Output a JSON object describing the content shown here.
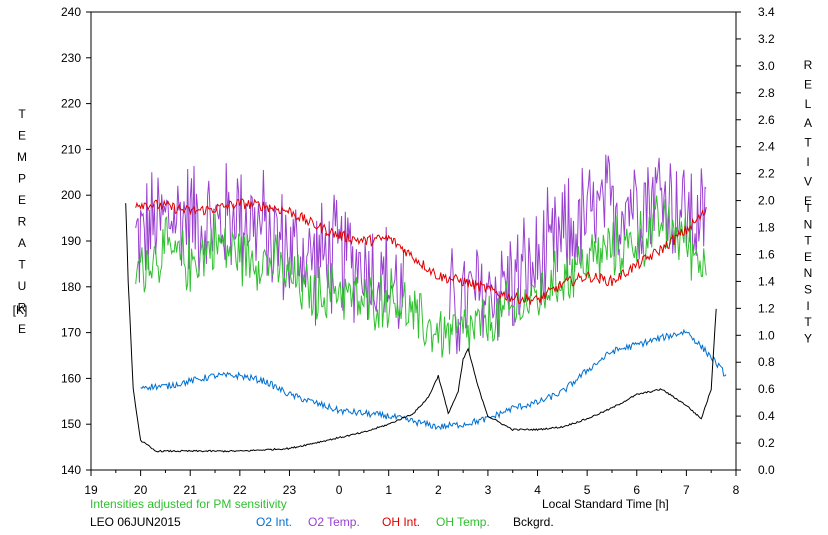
{
  "chart_data": {
    "type": "line",
    "station": "LEO 06JUN2015",
    "note": "Intensities adjusted for PM sensitivity",
    "xlabel": "Local Standard Time [h]",
    "xlim": [
      19,
      32
    ],
    "x_ticks": [
      19,
      20,
      21,
      22,
      23,
      24,
      25,
      26,
      27,
      28,
      29,
      30,
      31,
      32
    ],
    "x_tick_labels": [
      "19",
      "20",
      "21",
      "22",
      "23",
      "0",
      "1",
      "2",
      "3",
      "4",
      "5",
      "6",
      "7",
      "8"
    ],
    "y_left": {
      "label_letters": [
        "T",
        "E",
        "M",
        "P",
        "E",
        "R",
        "A",
        "T",
        "U",
        "R",
        "E"
      ],
      "unit": "[K]",
      "lim": [
        140,
        240
      ],
      "ticks": [
        140,
        150,
        160,
        170,
        180,
        190,
        200,
        210,
        220,
        230,
        240
      ]
    },
    "y_right": {
      "label_letters": [
        "R",
        "E",
        "L",
        "A",
        "T",
        "I",
        "V",
        "E"
      ],
      "label_letters2": [
        "I",
        "N",
        "T",
        "E",
        "N",
        "S",
        "I",
        "T",
        "Y"
      ],
      "lim": [
        0.0,
        3.4
      ],
      "ticks": [
        "0.0",
        "0.2",
        "0.4",
        "0.6",
        "0.8",
        "1.0",
        "1.2",
        "1.4",
        "1.6",
        "1.8",
        "2.0",
        "2.2",
        "2.4",
        "2.6",
        "2.8",
        "3.0",
        "3.2",
        "3.4"
      ]
    },
    "grid": false,
    "series": [
      {
        "name": "O2 Int.",
        "color": "#0070d0",
        "axis": "right",
        "noise": 0.025,
        "x": [
          20.0,
          20.5,
          21.0,
          21.5,
          22.0,
          22.5,
          23.0,
          23.5,
          24.0,
          24.5,
          25.0,
          25.5,
          26.0,
          26.5,
          27.0,
          27.5,
          28.0,
          28.5,
          29.0,
          29.5,
          30.0,
          30.5,
          31.0,
          31.5,
          31.8
        ],
        "y": [
          0.62,
          0.62,
          0.66,
          0.7,
          0.7,
          0.66,
          0.56,
          0.5,
          0.44,
          0.42,
          0.4,
          0.36,
          0.32,
          0.34,
          0.38,
          0.46,
          0.5,
          0.58,
          0.74,
          0.88,
          0.93,
          0.98,
          1.03,
          0.84,
          0.7
        ]
      },
      {
        "name": "O2 Temp.",
        "color": "#9a40d0",
        "axis": "left",
        "noise": 10,
        "x": [
          19.9,
          20.5,
          21.0,
          21.5,
          22.0,
          22.5,
          23.0,
          23.5,
          24.0,
          24.5,
          25.0,
          25.3,
          26.2,
          27.2,
          28.0,
          28.5,
          29.0,
          29.5,
          30.0,
          30.5,
          31.0,
          31.4
        ],
        "y": [
          190,
          195,
          196,
          193,
          197,
          192,
          188,
          186,
          187,
          185,
          181,
          178,
          175,
          180,
          184,
          190,
          195,
          197,
          200,
          201,
          196,
          193
        ]
      },
      {
        "name": "OH Int.",
        "color": "#e00000",
        "axis": "right",
        "noise": 0.04,
        "x": [
          19.9,
          20.5,
          21.0,
          21.5,
          22.0,
          22.5,
          23.0,
          23.5,
          24.0,
          24.5,
          25.0,
          25.3,
          25.5,
          26.0,
          26.5,
          27.0,
          27.5,
          28.0,
          28.5,
          29.0,
          29.5,
          30.0,
          30.5,
          31.0,
          31.4
        ],
        "y": [
          1.98,
          1.96,
          1.92,
          1.94,
          1.98,
          1.96,
          1.92,
          1.82,
          1.74,
          1.7,
          1.72,
          1.64,
          1.58,
          1.44,
          1.4,
          1.34,
          1.28,
          1.26,
          1.38,
          1.44,
          1.4,
          1.52,
          1.64,
          1.78,
          1.92
        ]
      },
      {
        "name": "OH Temp.",
        "color": "#30c030",
        "axis": "left",
        "noise": 5,
        "x": [
          19.9,
          20.5,
          21.0,
          21.5,
          22.0,
          22.5,
          23.0,
          23.5,
          24.0,
          24.5,
          25.0,
          25.3,
          25.5,
          26.0,
          26.5,
          27.0,
          27.5,
          28.0,
          28.5,
          29.0,
          29.5,
          30.0,
          30.5,
          31.0,
          31.4
        ],
        "y": [
          184,
          188,
          185,
          190,
          187,
          186,
          182,
          178,
          180,
          176,
          178,
          176,
          173,
          170,
          170,
          172,
          175,
          178,
          182,
          186,
          188,
          190,
          194,
          190,
          184
        ]
      },
      {
        "name": "Bckgrd.",
        "color": "#000000",
        "axis": "right",
        "noise": 0.006,
        "x": [
          19.7,
          19.75,
          19.85,
          20.0,
          20.3,
          21.0,
          22.0,
          23.0,
          23.5,
          24.0,
          24.5,
          25.0,
          25.5,
          25.8,
          26.0,
          26.2,
          26.4,
          26.5,
          26.6,
          26.8,
          27.0,
          27.5,
          28.0,
          28.5,
          29.0,
          29.5,
          30.0,
          30.5,
          31.0,
          31.3,
          31.5,
          31.6
        ],
        "y": [
          1.98,
          1.4,
          0.6,
          0.22,
          0.14,
          0.14,
          0.14,
          0.16,
          0.2,
          0.24,
          0.28,
          0.34,
          0.42,
          0.54,
          0.7,
          0.42,
          0.58,
          0.82,
          0.9,
          0.62,
          0.4,
          0.3,
          0.3,
          0.32,
          0.38,
          0.46,
          0.56,
          0.6,
          0.48,
          0.38,
          0.6,
          1.2
        ]
      }
    ]
  }
}
